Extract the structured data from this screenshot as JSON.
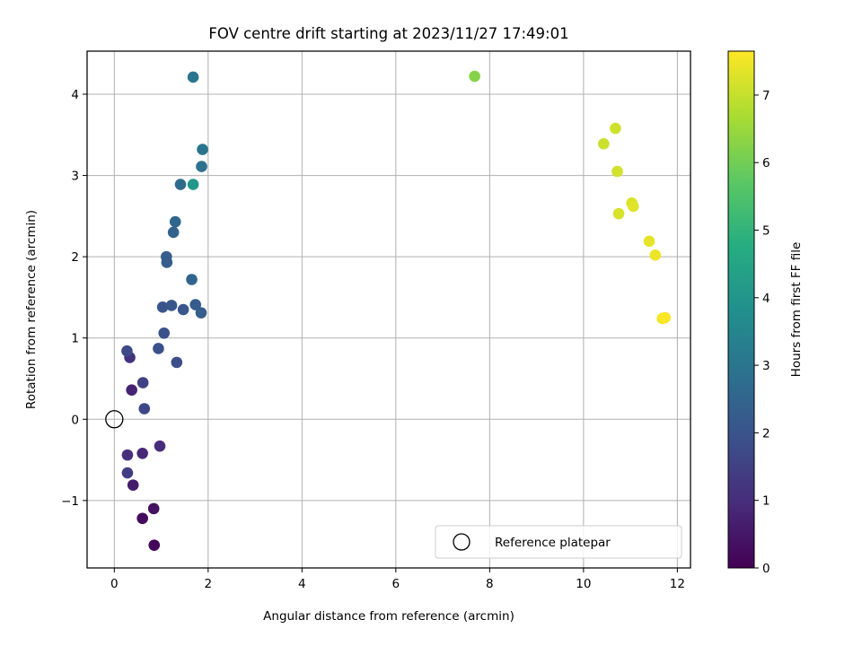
{
  "chart_data": {
    "type": "scatter",
    "title": "FOV centre drift starting at 2023/11/27 17:49:01",
    "xlabel": "Angular distance from reference (arcmin)",
    "ylabel": "Rotation from reference (arcmin)",
    "xlim": [
      -0.58,
      12.28
    ],
    "ylim": [
      -1.83,
      4.53
    ],
    "xticks": [
      0,
      2,
      4,
      6,
      8,
      10,
      12
    ],
    "xtick_labels": [
      "0",
      "2",
      "4",
      "6",
      "8",
      "10",
      "12"
    ],
    "yticks": [
      -1,
      0,
      1,
      2,
      3,
      4
    ],
    "ytick_labels": [
      "−1",
      "0",
      "1",
      "2",
      "3",
      "4"
    ],
    "grid": true,
    "legend": {
      "position": "lower-right",
      "entries": [
        "Reference platepar"
      ]
    },
    "colorbar": {
      "label": "Hours from first FF file",
      "colormap": "viridis",
      "range": [
        0,
        7.65
      ],
      "ticks": [
        0,
        1,
        2,
        3,
        4,
        5,
        6,
        7
      ],
      "tick_labels": [
        "0",
        "1",
        "2",
        "3",
        "4",
        "5",
        "6",
        "7"
      ]
    },
    "reference_point": {
      "x": 0,
      "y": 0,
      "label": "Reference platepar"
    },
    "points": [
      {
        "x": 0.85,
        "y": -1.55,
        "hours": 0.15
      },
      {
        "x": 0.6,
        "y": -1.22,
        "hours": 0.25
      },
      {
        "x": 0.84,
        "y": -1.1,
        "hours": 0.35
      },
      {
        "x": 0.4,
        "y": -0.81,
        "hours": 0.6
      },
      {
        "x": 0.28,
        "y": -0.66,
        "hours": 1.4
      },
      {
        "x": 0.28,
        "y": -0.44,
        "hours": 1.05
      },
      {
        "x": 0.6,
        "y": -0.42,
        "hours": 0.85
      },
      {
        "x": 0.97,
        "y": -0.33,
        "hours": 0.95
      },
      {
        "x": 0.64,
        "y": 0.13,
        "hours": 1.65
      },
      {
        "x": 0.37,
        "y": 0.36,
        "hours": 0.75
      },
      {
        "x": 0.61,
        "y": 0.45,
        "hours": 1.5
      },
      {
        "x": 0.33,
        "y": 0.76,
        "hours": 1.1
      },
      {
        "x": 0.27,
        "y": 0.84,
        "hours": 1.75
      },
      {
        "x": 1.33,
        "y": 0.7,
        "hours": 1.85
      },
      {
        "x": 0.94,
        "y": 0.87,
        "hours": 1.9
      },
      {
        "x": 1.06,
        "y": 1.06,
        "hours": 1.95
      },
      {
        "x": 1.03,
        "y": 1.38,
        "hours": 2.0
      },
      {
        "x": 1.22,
        "y": 1.4,
        "hours": 2.05
      },
      {
        "x": 1.47,
        "y": 1.35,
        "hours": 2.1
      },
      {
        "x": 1.73,
        "y": 1.41,
        "hours": 2.2
      },
      {
        "x": 1.85,
        "y": 1.31,
        "hours": 2.3
      },
      {
        "x": 1.65,
        "y": 1.72,
        "hours": 2.5
      },
      {
        "x": 1.12,
        "y": 1.93,
        "hours": 2.3
      },
      {
        "x": 1.11,
        "y": 2.0,
        "hours": 2.25
      },
      {
        "x": 1.26,
        "y": 2.3,
        "hours": 2.45
      },
      {
        "x": 1.3,
        "y": 2.43,
        "hours": 2.55
      },
      {
        "x": 1.41,
        "y": 2.89,
        "hours": 2.7
      },
      {
        "x": 1.68,
        "y": 2.89,
        "hours": 4.1
      },
      {
        "x": 1.86,
        "y": 3.11,
        "hours": 2.9
      },
      {
        "x": 1.88,
        "y": 3.32,
        "hours": 2.95
      },
      {
        "x": 1.68,
        "y": 4.21,
        "hours": 3.0
      },
      {
        "x": 7.68,
        "y": 4.22,
        "hours": 6.25
      },
      {
        "x": 10.43,
        "y": 3.39,
        "hours": 7.05
      },
      {
        "x": 10.68,
        "y": 3.58,
        "hours": 7.1
      },
      {
        "x": 10.72,
        "y": 3.05,
        "hours": 7.15
      },
      {
        "x": 10.75,
        "y": 2.53,
        "hours": 7.2
      },
      {
        "x": 11.03,
        "y": 2.66,
        "hours": 7.25
      },
      {
        "x": 11.06,
        "y": 2.62,
        "hours": 7.3
      },
      {
        "x": 11.4,
        "y": 2.19,
        "hours": 7.4
      },
      {
        "x": 11.53,
        "y": 2.02,
        "hours": 7.45
      },
      {
        "x": 11.68,
        "y": 1.24,
        "hours": 7.55
      },
      {
        "x": 11.74,
        "y": 1.25,
        "hours": 7.6
      }
    ]
  }
}
